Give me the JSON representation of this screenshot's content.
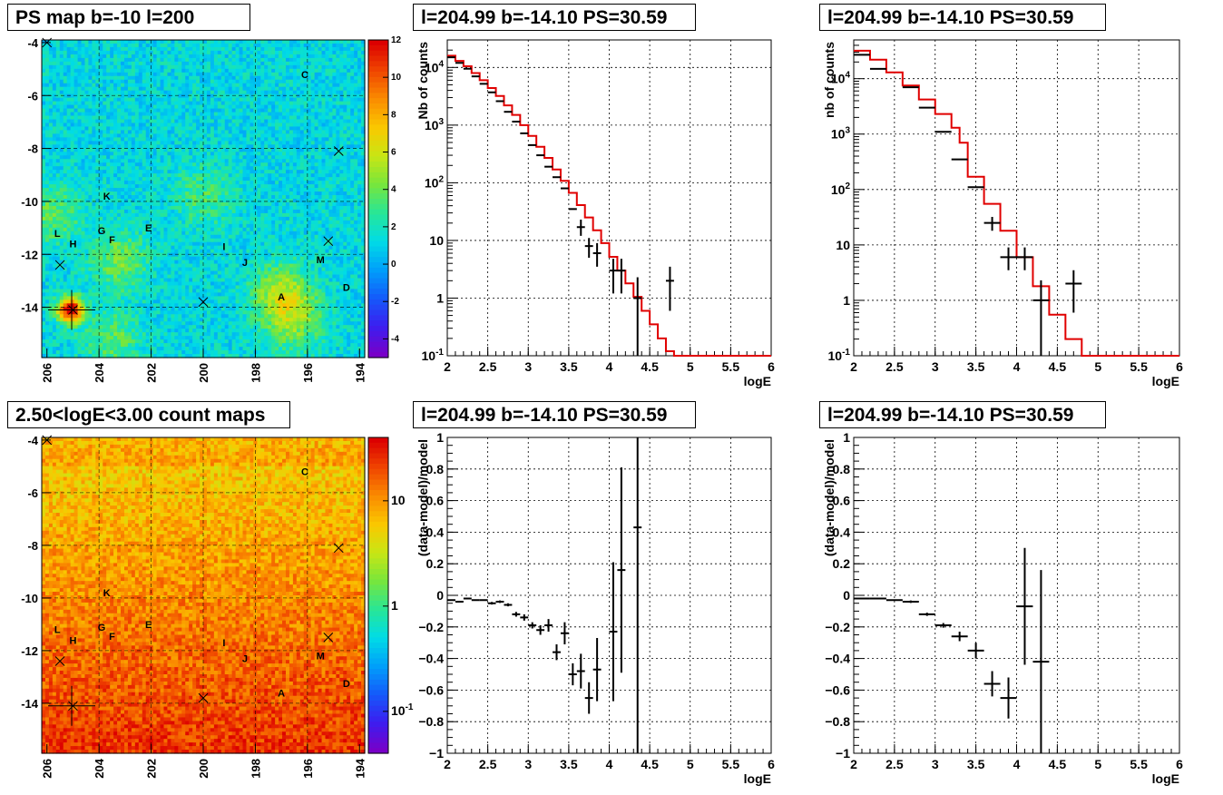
{
  "titles": {
    "map1": "PS map b=-10 l=200",
    "spec1": "l=204.99 b=-14.10 PS=30.59",
    "spec2": "l=204.99 b=-14.10 PS=30.59",
    "map2": "2.50<logE<3.00 count maps",
    "res1": "l=204.99 b=-14.10 PS=30.59",
    "res2": "l=204.99 b=-14.10 PS=30.59"
  },
  "chart_data": [
    {
      "id": "map1",
      "type": "heatmap",
      "title": "PS map b=-10 l=200",
      "x_ticks": [
        "206",
        "204",
        "202",
        "200",
        "198",
        "196",
        "194"
      ],
      "y_ticks": [
        "-4",
        "-6",
        "-8",
        "-10",
        "-12",
        "-14"
      ],
      "xlim": [
        206.2,
        193.8
      ],
      "ylim": [
        -15.9,
        -3.9
      ],
      "colorbar_ticks": [
        "12",
        "10",
        "8",
        "6",
        "4",
        "2",
        "0",
        "-2",
        "-4"
      ],
      "zlim": [
        -5,
        12
      ],
      "sources": [
        {
          "label": "C",
          "l": 196.1,
          "b": -5.2
        },
        {
          "label": "K",
          "l": 203.7,
          "b": -9.8
        },
        {
          "label": "L",
          "l": 205.6,
          "b": -11.2
        },
        {
          "label": "G",
          "l": 203.9,
          "b": -11.1
        },
        {
          "label": "E",
          "l": 202.1,
          "b": -11.0
        },
        {
          "label": "H",
          "l": 205.0,
          "b": -11.6
        },
        {
          "label": "F",
          "l": 203.5,
          "b": -11.45
        },
        {
          "label": "I",
          "l": 199.2,
          "b": -11.7
        },
        {
          "label": "M",
          "l": 195.5,
          "b": -12.2
        },
        {
          "label": "J",
          "l": 198.4,
          "b": -12.3
        },
        {
          "label": "A",
          "l": 197.0,
          "b": -13.6
        },
        {
          "label": "D",
          "l": 194.5,
          "b": -13.25
        }
      ],
      "crosses": [
        {
          "l": 206,
          "b": -4
        },
        {
          "l": 194.8,
          "b": -8.1
        },
        {
          "l": 195.2,
          "b": -11.5
        },
        {
          "l": 205.5,
          "b": -12.4
        },
        {
          "l": 200.0,
          "b": -13.8
        },
        {
          "l": 205.0,
          "b": -14.1
        }
      ],
      "hotspots": [
        {
          "l": 205.1,
          "b": -14.1,
          "z": 12
        },
        {
          "l": 197.0,
          "b": -13.5,
          "z": 4
        },
        {
          "l": 203.2,
          "b": -12.2,
          "z": 3
        },
        {
          "l": 196.5,
          "b": -14.5,
          "z": 3
        },
        {
          "l": 205.8,
          "b": -10.5,
          "z": 2.5
        },
        {
          "l": 203.5,
          "b": -15.2,
          "z": 2.5
        },
        {
          "l": 200,
          "b": -9.8,
          "z": 2
        }
      ]
    },
    {
      "id": "spec1",
      "type": "line",
      "title": "l=204.99 b=-14.10 PS=30.59",
      "xlabel": "logE",
      "ylabel": "Nb of counts",
      "xlim": [
        2,
        6
      ],
      "ylog": true,
      "ylim": [
        0.1,
        30000
      ],
      "x_ticks": [
        2,
        2.5,
        3,
        3.5,
        4,
        4.5,
        5,
        5.5,
        6
      ],
      "y_ticks": [
        {
          "v": 0.1,
          "label": "10^-1"
        },
        {
          "v": 1,
          "label": "1"
        },
        {
          "v": 10,
          "label": "10"
        },
        {
          "v": 100,
          "label": "10^2"
        },
        {
          "v": 1000,
          "label": "10^3"
        },
        {
          "v": 10000,
          "label": "10^4"
        }
      ],
      "grid": true,
      "data": [
        {
          "x": 2.05,
          "y": 15000,
          "xerr": 0.05
        },
        {
          "x": 2.15,
          "y": 12000,
          "xerr": 0.05
        },
        {
          "x": 2.25,
          "y": 9500,
          "xerr": 0.05
        },
        {
          "x": 2.35,
          "y": 7000,
          "xerr": 0.05
        },
        {
          "x": 2.45,
          "y": 5200,
          "xerr": 0.05
        },
        {
          "x": 2.55,
          "y": 3700,
          "xerr": 0.05
        },
        {
          "x": 2.65,
          "y": 2600,
          "xerr": 0.05
        },
        {
          "x": 2.75,
          "y": 1700,
          "xerr": 0.05
        },
        {
          "x": 2.85,
          "y": 1150,
          "xerr": 0.05
        },
        {
          "x": 2.95,
          "y": 720,
          "xerr": 0.05
        },
        {
          "x": 3.05,
          "y": 450,
          "xerr": 0.05
        },
        {
          "x": 3.15,
          "y": 300,
          "xerr": 0.05
        },
        {
          "x": 3.25,
          "y": 190,
          "xerr": 0.05
        },
        {
          "x": 3.35,
          "y": 125,
          "xerr": 0.05
        },
        {
          "x": 3.45,
          "y": 80,
          "xerr": 0.05
        },
        {
          "x": 3.55,
          "y": 35,
          "xerr": 0.05
        },
        {
          "x": 3.65,
          "y": 17,
          "xerr": 0.05,
          "ylo": 12,
          "yhi": 23
        },
        {
          "x": 3.75,
          "y": 8,
          "xerr": 0.05,
          "ylo": 5,
          "yhi": 11
        },
        {
          "x": 3.85,
          "y": 6,
          "xerr": 0.05,
          "ylo": 3.5,
          "yhi": 9
        },
        {
          "x": 4.05,
          "y": 3,
          "xerr": 0.05,
          "ylo": 1.2,
          "yhi": 4.8
        },
        {
          "x": 4.15,
          "y": 3,
          "xerr": 0.05,
          "ylo": 1.2,
          "yhi": 4.8
        },
        {
          "x": 4.35,
          "y": 1,
          "xerr": 0.05,
          "ylo": 0.1,
          "yhi": 2.3
        },
        {
          "x": 4.75,
          "y": 2,
          "xerr": 0.05,
          "ylo": 0.6,
          "yhi": 3.5
        }
      ],
      "model_steps": [
        {
          "x": 2.0,
          "y": 16000
        },
        {
          "x": 2.1,
          "y": 13000
        },
        {
          "x": 2.2,
          "y": 10500
        },
        {
          "x": 2.3,
          "y": 8000
        },
        {
          "x": 2.4,
          "y": 6000
        },
        {
          "x": 2.5,
          "y": 4400
        },
        {
          "x": 2.6,
          "y": 3200
        },
        {
          "x": 2.7,
          "y": 2200
        },
        {
          "x": 2.8,
          "y": 1500
        },
        {
          "x": 2.9,
          "y": 1000
        },
        {
          "x": 3.0,
          "y": 650
        },
        {
          "x": 3.1,
          "y": 420
        },
        {
          "x": 3.2,
          "y": 270
        },
        {
          "x": 3.3,
          "y": 170
        },
        {
          "x": 3.4,
          "y": 108
        },
        {
          "x": 3.5,
          "y": 67
        },
        {
          "x": 3.6,
          "y": 41
        },
        {
          "x": 3.7,
          "y": 25
        },
        {
          "x": 3.8,
          "y": 15
        },
        {
          "x": 3.9,
          "y": 9
        },
        {
          "x": 4.0,
          "y": 5.2
        },
        {
          "x": 4.1,
          "y": 3
        },
        {
          "x": 4.2,
          "y": 1.8
        },
        {
          "x": 4.3,
          "y": 1.05
        },
        {
          "x": 4.4,
          "y": 0.6
        },
        {
          "x": 4.5,
          "y": 0.35
        },
        {
          "x": 4.6,
          "y": 0.2
        },
        {
          "x": 4.7,
          "y": 0.12
        },
        {
          "x": 4.8,
          "y": 0.1
        },
        {
          "x": 6.0,
          "y": 0.1
        }
      ]
    },
    {
      "id": "spec2",
      "type": "line",
      "title": "l=204.99 b=-14.10 PS=30.59",
      "xlabel": "logE",
      "ylabel": "nb of counts",
      "xlim": [
        2,
        6
      ],
      "ylog": true,
      "ylim": [
        0.1,
        50000
      ],
      "x_ticks": [
        2,
        2.5,
        3,
        3.5,
        4,
        4.5,
        5,
        5.5,
        6
      ],
      "y_ticks": [
        {
          "v": 0.1,
          "label": "10^-1"
        },
        {
          "v": 1,
          "label": "1"
        },
        {
          "v": 10,
          "label": "10"
        },
        {
          "v": 100,
          "label": "10^2"
        },
        {
          "v": 1000,
          "label": "10^3"
        },
        {
          "v": 10000,
          "label": "10^4"
        }
      ],
      "grid": true,
      "data": [
        {
          "x": 2.1,
          "y": 27000,
          "xerr": 0.1
        },
        {
          "x": 2.3,
          "y": 15000,
          "xerr": 0.1
        },
        {
          "x": 2.7,
          "y": 7000,
          "xerr": 0.1
        },
        {
          "x": 2.9,
          "y": 3000,
          "xerr": 0.1
        },
        {
          "x": 3.1,
          "y": 1100,
          "xerr": 0.1
        },
        {
          "x": 3.3,
          "y": 350,
          "xerr": 0.1
        },
        {
          "x": 3.5,
          "y": 110,
          "xerr": 0.1
        },
        {
          "x": 3.7,
          "y": 25,
          "xerr": 0.1,
          "ylo": 18,
          "yhi": 32
        },
        {
          "x": 3.9,
          "y": 6,
          "xerr": 0.1,
          "ylo": 3.5,
          "yhi": 9
        },
        {
          "x": 4.1,
          "y": 6,
          "xerr": 0.1,
          "ylo": 3.5,
          "yhi": 9
        },
        {
          "x": 4.3,
          "y": 1,
          "xerr": 0.1,
          "ylo": 0.1,
          "yhi": 2.3
        },
        {
          "x": 4.7,
          "y": 2,
          "xerr": 0.1,
          "ylo": 0.6,
          "yhi": 3.5
        }
      ],
      "model_steps": [
        {
          "x": 2.0,
          "y": 32000
        },
        {
          "x": 2.2,
          "y": 22000
        },
        {
          "x": 2.4,
          "y": 13000
        },
        {
          "x": 2.6,
          "y": 7500
        },
        {
          "x": 2.8,
          "y": 4200
        },
        {
          "x": 3.0,
          "y": 2300
        },
        {
          "x": 3.2,
          "y": 1300
        },
        {
          "x": 3.4,
          "y": 170
        },
        {
          "x": 3.3,
          "y": 700
        },
        {
          "x": 3.6,
          "y": 55
        },
        {
          "x": 3.8,
          "y": 18
        },
        {
          "x": 4.0,
          "y": 6
        },
        {
          "x": 4.2,
          "y": 1.8
        },
        {
          "x": 4.4,
          "y": 0.55
        },
        {
          "x": 4.6,
          "y": 0.2
        },
        {
          "x": 4.8,
          "y": 0.1
        },
        {
          "x": 6.0,
          "y": 0.1
        }
      ]
    },
    {
      "id": "map2",
      "type": "heatmap",
      "title": "2.50<logE<3.00 count maps",
      "x_ticks": [
        "206",
        "204",
        "202",
        "200",
        "198",
        "196",
        "194"
      ],
      "y_ticks": [
        "-4",
        "-6",
        "-8",
        "-10",
        "-12",
        "-14"
      ],
      "xlim": [
        206.2,
        193.8
      ],
      "ylim": [
        -15.9,
        -3.9
      ],
      "colorbar_ticks": [
        {
          "v": 10,
          "label": "10"
        },
        {
          "v": 1,
          "label": "1"
        },
        {
          "v": 0.1,
          "label": "10^-1"
        }
      ],
      "zlog": true,
      "zlim": [
        0.04,
        40
      ]
    },
    {
      "id": "res1",
      "type": "scatter",
      "title": "l=204.99 b=-14.10 PS=30.59",
      "xlabel": "logE",
      "ylabel": "(data-model)/model",
      "xlim": [
        2,
        6
      ],
      "ylim": [
        -1,
        1
      ],
      "x_ticks": [
        2,
        2.5,
        3,
        3.5,
        4,
        4.5,
        5,
        5.5,
        6
      ],
      "y_ticks": [
        -1,
        -0.8,
        -0.6,
        -0.4,
        -0.2,
        0,
        0.2,
        0.4,
        0.6,
        0.8,
        1
      ],
      "grid": true,
      "data": [
        {
          "x": 2.05,
          "y": -0.03,
          "xerr": 0.05,
          "yerr": 0.005
        },
        {
          "x": 2.15,
          "y": -0.04,
          "xerr": 0.05,
          "yerr": 0.005
        },
        {
          "x": 2.25,
          "y": -0.02,
          "xerr": 0.05,
          "yerr": 0.005
        },
        {
          "x": 2.35,
          "y": -0.03,
          "xerr": 0.05,
          "yerr": 0.005
        },
        {
          "x": 2.45,
          "y": -0.03,
          "xerr": 0.05,
          "yerr": 0.005
        },
        {
          "x": 2.55,
          "y": -0.05,
          "xerr": 0.05,
          "yerr": 0.008
        },
        {
          "x": 2.65,
          "y": -0.04,
          "xerr": 0.05,
          "yerr": 0.008
        },
        {
          "x": 2.75,
          "y": -0.06,
          "xerr": 0.05,
          "yerr": 0.01
        },
        {
          "x": 2.85,
          "y": -0.12,
          "xerr": 0.05,
          "yerr": 0.015
        },
        {
          "x": 2.95,
          "y": -0.14,
          "xerr": 0.05,
          "yerr": 0.02
        },
        {
          "x": 3.05,
          "y": -0.19,
          "xerr": 0.05,
          "yerr": 0.02
        },
        {
          "x": 3.15,
          "y": -0.22,
          "xerr": 0.05,
          "yerr": 0.03
        },
        {
          "x": 3.25,
          "y": -0.19,
          "xerr": 0.05,
          "yerr": 0.04
        },
        {
          "x": 3.35,
          "y": -0.36,
          "xerr": 0.05,
          "yerr": 0.05
        },
        {
          "x": 3.45,
          "y": -0.24,
          "xerr": 0.05,
          "yerr": 0.07
        },
        {
          "x": 3.55,
          "y": -0.5,
          "xerr": 0.05,
          "yerr": 0.07
        },
        {
          "x": 3.65,
          "y": -0.48,
          "xerr": 0.05,
          "yerr": 0.11
        },
        {
          "x": 3.75,
          "y": -0.65,
          "xerr": 0.05,
          "yerr": 0.1
        },
        {
          "x": 3.85,
          "y": -0.47,
          "xerr": 0.05,
          "yerr": 0.2
        },
        {
          "x": 4.05,
          "y": -0.23,
          "xerr": 0.05,
          "yerr": 0.44
        },
        {
          "x": 4.15,
          "y": 0.16,
          "xerr": 0.05,
          "yerr": 0.65
        },
        {
          "x": 4.35,
          "y": 0.43,
          "xerr": 0.05,
          "yerr": 1.5
        }
      ]
    },
    {
      "id": "res2",
      "type": "scatter",
      "title": "l=204.99 b=-14.10 PS=30.59",
      "xlabel": "logE",
      "ylabel": "(data-model)/model",
      "xlim": [
        2,
        6
      ],
      "ylim": [
        -1,
        1
      ],
      "x_ticks": [
        2,
        2.5,
        3,
        3.5,
        4,
        4.5,
        5,
        5.5,
        6
      ],
      "y_ticks": [
        -1,
        -0.8,
        -0.6,
        -0.4,
        -0.2,
        0,
        0.2,
        0.4,
        0.6,
        0.8,
        1
      ],
      "grid": true,
      "data": [
        {
          "x": 2.1,
          "y": -0.02,
          "xerr": 0.1,
          "yerr": 0.005
        },
        {
          "x": 2.3,
          "y": -0.02,
          "xerr": 0.1,
          "yerr": 0.005
        },
        {
          "x": 2.5,
          "y": -0.03,
          "xerr": 0.1,
          "yerr": 0.005
        },
        {
          "x": 2.7,
          "y": -0.04,
          "xerr": 0.1,
          "yerr": 0.008
        },
        {
          "x": 2.9,
          "y": -0.12,
          "xerr": 0.1,
          "yerr": 0.01
        },
        {
          "x": 3.1,
          "y": -0.19,
          "xerr": 0.1,
          "yerr": 0.015
        },
        {
          "x": 3.3,
          "y": -0.26,
          "xerr": 0.1,
          "yerr": 0.03
        },
        {
          "x": 3.5,
          "y": -0.35,
          "xerr": 0.1,
          "yerr": 0.05
        },
        {
          "x": 3.7,
          "y": -0.56,
          "xerr": 0.1,
          "yerr": 0.08
        },
        {
          "x": 3.9,
          "y": -0.65,
          "xerr": 0.1,
          "yerr": 0.13
        },
        {
          "x": 4.1,
          "y": -0.07,
          "xerr": 0.1,
          "yerr": 0.37
        },
        {
          "x": 4.3,
          "y": -0.42,
          "xerr": 0.1,
          "yerr": 0.58
        }
      ]
    }
  ]
}
